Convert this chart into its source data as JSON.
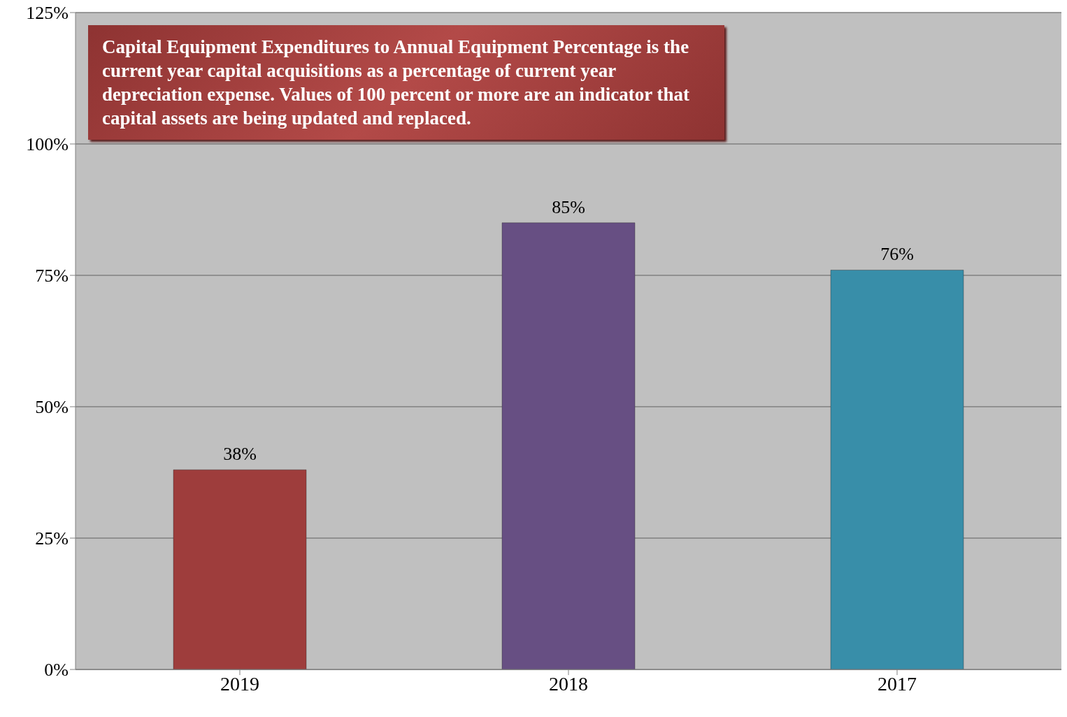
{
  "chart_data": {
    "type": "bar",
    "categories": [
      "2019",
      "2018",
      "2017"
    ],
    "values": [
      38,
      85,
      76
    ],
    "colors": [
      "#9e3d3c",
      "#674f83",
      "#388ea9"
    ],
    "value_labels": [
      "38%",
      "85%",
      "76%"
    ],
    "ylim": [
      0,
      125
    ],
    "yticks": [
      {
        "value": 0,
        "label": "0%"
      },
      {
        "value": 25,
        "label": "25%"
      },
      {
        "value": 50,
        "label": "50%"
      },
      {
        "value": 75,
        "label": "75%"
      },
      {
        "value": 100,
        "label": "100%"
      },
      {
        "value": 125,
        "label": "125%"
      }
    ],
    "grid": "y",
    "annotations": [
      "Capital Equipment Expenditures to Annual Equipment Percentage is the current year capital acquisitions as a percentage of current year depreciation expense. Values of 100 percent or more are an indicator that capital assets are being updated and replaced."
    ]
  }
}
